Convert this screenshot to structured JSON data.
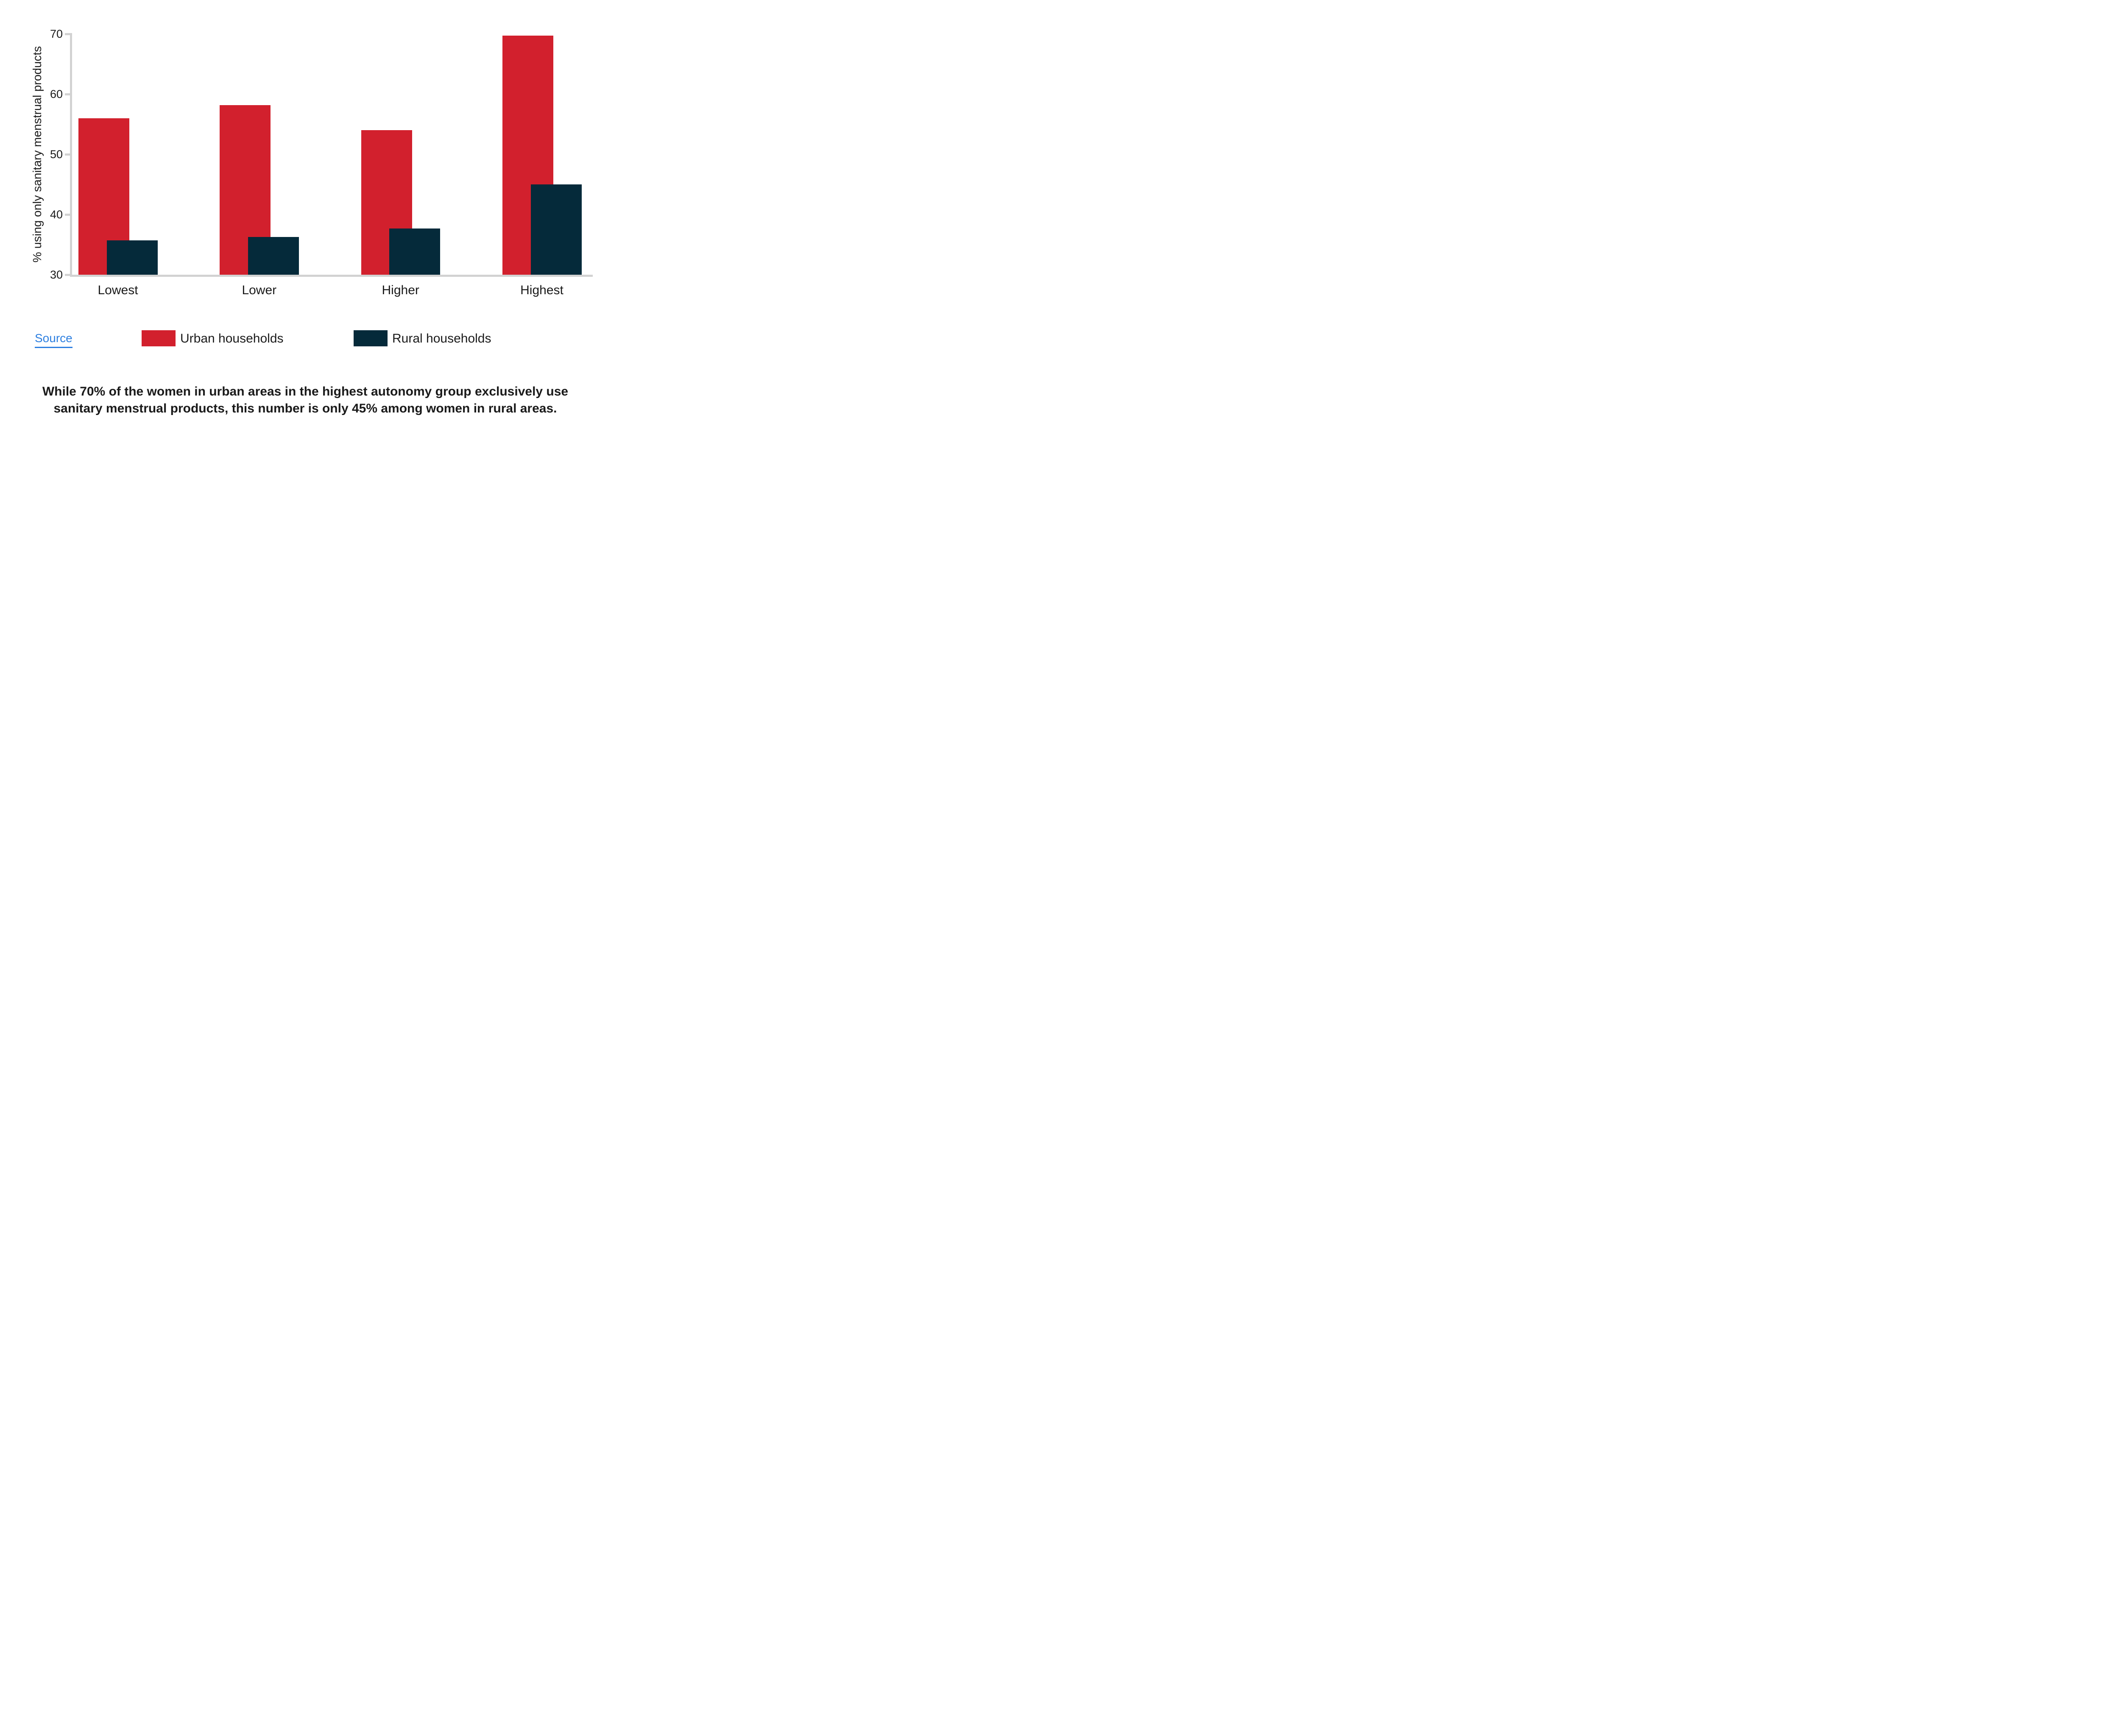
{
  "chart_data": {
    "type": "bar",
    "categories": [
      "Lowest",
      "Lower",
      "Higher",
      "Highest"
    ],
    "series": [
      {
        "name": "Urban households",
        "color": "#d2202d",
        "values": [
          56,
          58.2,
          54,
          69.7
        ]
      },
      {
        "name": "Rural households",
        "color": "#052a3a",
        "values": [
          35.7,
          36.3,
          37.7,
          45
        ]
      }
    ],
    "title": "",
    "xlabel": "",
    "ylabel": "% using only sanitary menstrual products",
    "ylim": [
      30,
      70
    ],
    "yticks": [
      30,
      40,
      50,
      60,
      70
    ],
    "grid": false,
    "legend_position": "bottom",
    "axis_color": "#d2d2d2"
  },
  "source": {
    "label": "Source",
    "color": "#2d7fe0"
  },
  "legend": {
    "urban_label": "Urban households",
    "rural_label": "Rural households"
  },
  "caption": {
    "line1": "While 70% of the women in urban areas in the highest autonomy group exclusively use",
    "line2": "sanitary menstrual products, this number is only 45% among women in rural areas."
  }
}
